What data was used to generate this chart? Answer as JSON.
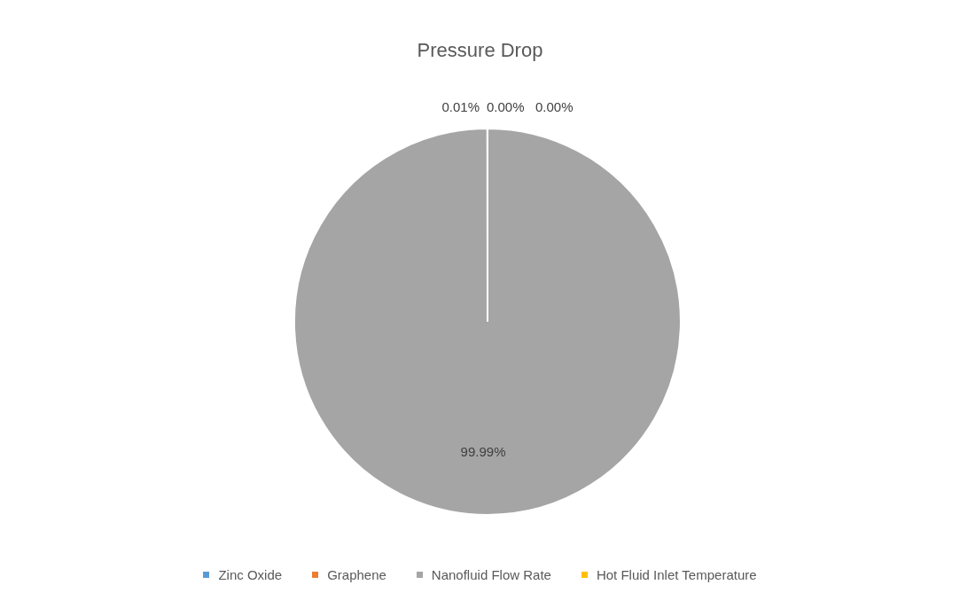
{
  "chart_data": {
    "type": "pie",
    "title": "Pressure Drop",
    "categories": [
      "Zinc Oxide",
      "Graphene",
      "Nanofluid Flow Rate",
      "Hot Fluid Inlet Temperature"
    ],
    "values": [
      0,
      0,
      99.99,
      0.01
    ],
    "value_labels": [
      "0.00%",
      "0.00%",
      "99.99%",
      "0.01%"
    ],
    "colors": [
      "#5b9bd5",
      "#ed7d31",
      "#a5a5a5",
      "#ffc000"
    ],
    "legend": "bottom"
  }
}
